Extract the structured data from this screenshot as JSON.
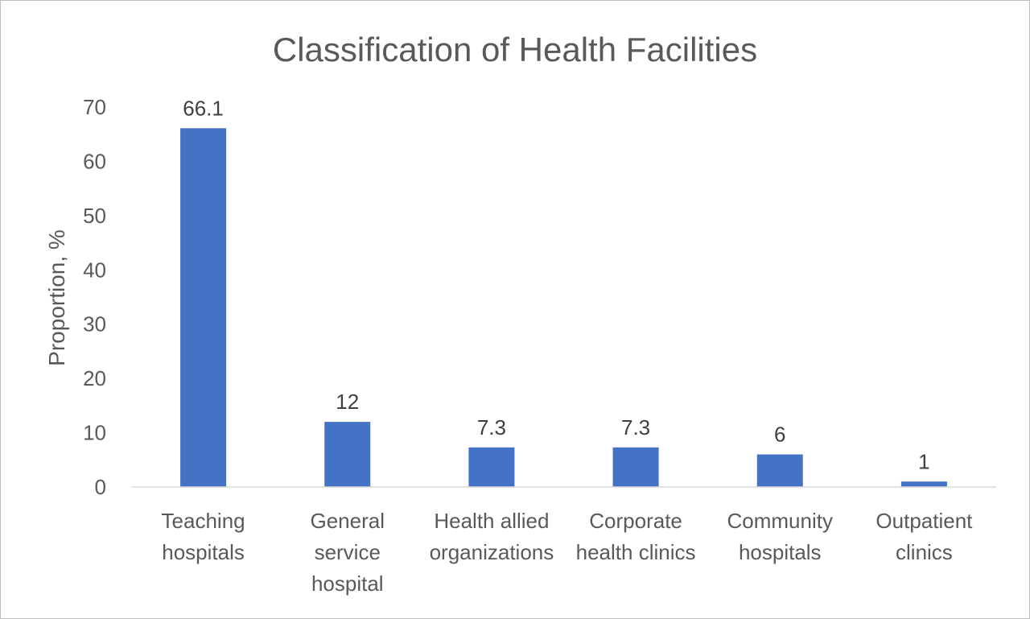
{
  "chart_data": {
    "type": "bar",
    "title": "Classification of Health Facilities",
    "xlabel": "",
    "ylabel": "Proportion, %",
    "ylim": [
      0,
      70
    ],
    "yticks": [
      "0",
      "10",
      "20",
      "30",
      "40",
      "50",
      "60",
      "70"
    ],
    "categories": [
      [
        "Teaching",
        "hospitals"
      ],
      [
        "General",
        "service",
        "hospital"
      ],
      [
        "Health allied",
        "organizations"
      ],
      [
        "Corporate",
        "health clinics"
      ],
      [
        "Community",
        "hospitals"
      ],
      [
        "Outpatient",
        "clinics"
      ]
    ],
    "values": [
      66.1,
      12,
      7.3,
      7.3,
      6,
      1
    ],
    "data_labels": [
      "66.1",
      "12",
      "7.3",
      "7.3",
      "6",
      "1"
    ],
    "grid": false,
    "legend": "none",
    "bar_color": "#4472C4"
  }
}
